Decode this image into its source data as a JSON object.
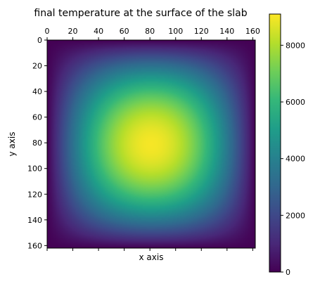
{
  "chart_data": {
    "type": "heatmap",
    "title": "final temperature at the surface of the slab",
    "xlabel": "x axis",
    "ylabel": "y axis",
    "xlim": [
      0,
      162
    ],
    "ylim": [
      162,
      0
    ],
    "x_ticks": [
      0,
      20,
      40,
      60,
      80,
      100,
      120,
      140,
      160
    ],
    "y_ticks": [
      0,
      20,
      40,
      60,
      80,
      100,
      120,
      140,
      160
    ],
    "x_tick_position": "top",
    "y_tick_position": "left",
    "grid": false,
    "colormap": "viridis",
    "grid_size": [
      162,
      162
    ],
    "field": {
      "center": [
        80,
        80
      ],
      "max_value": 9000,
      "boundary_value": 0,
      "profile": "sin(pi*x/162)*sin(pi*y/162) scaled so that max is about 9000"
    },
    "colorbar": {
      "position": "right",
      "range": [
        0,
        9100
      ],
      "ticks": [
        0,
        2000,
        4000,
        6000,
        8000
      ],
      "tick_labels": [
        "0",
        "2000",
        "4000",
        "6000",
        "8000"
      ]
    }
  },
  "colors": {
    "viridis": [
      "#440154",
      "#482878",
      "#3e4989",
      "#31688e",
      "#26828e",
      "#1f9e89",
      "#35b779",
      "#6ece58",
      "#b5de2b",
      "#fde725"
    ]
  }
}
